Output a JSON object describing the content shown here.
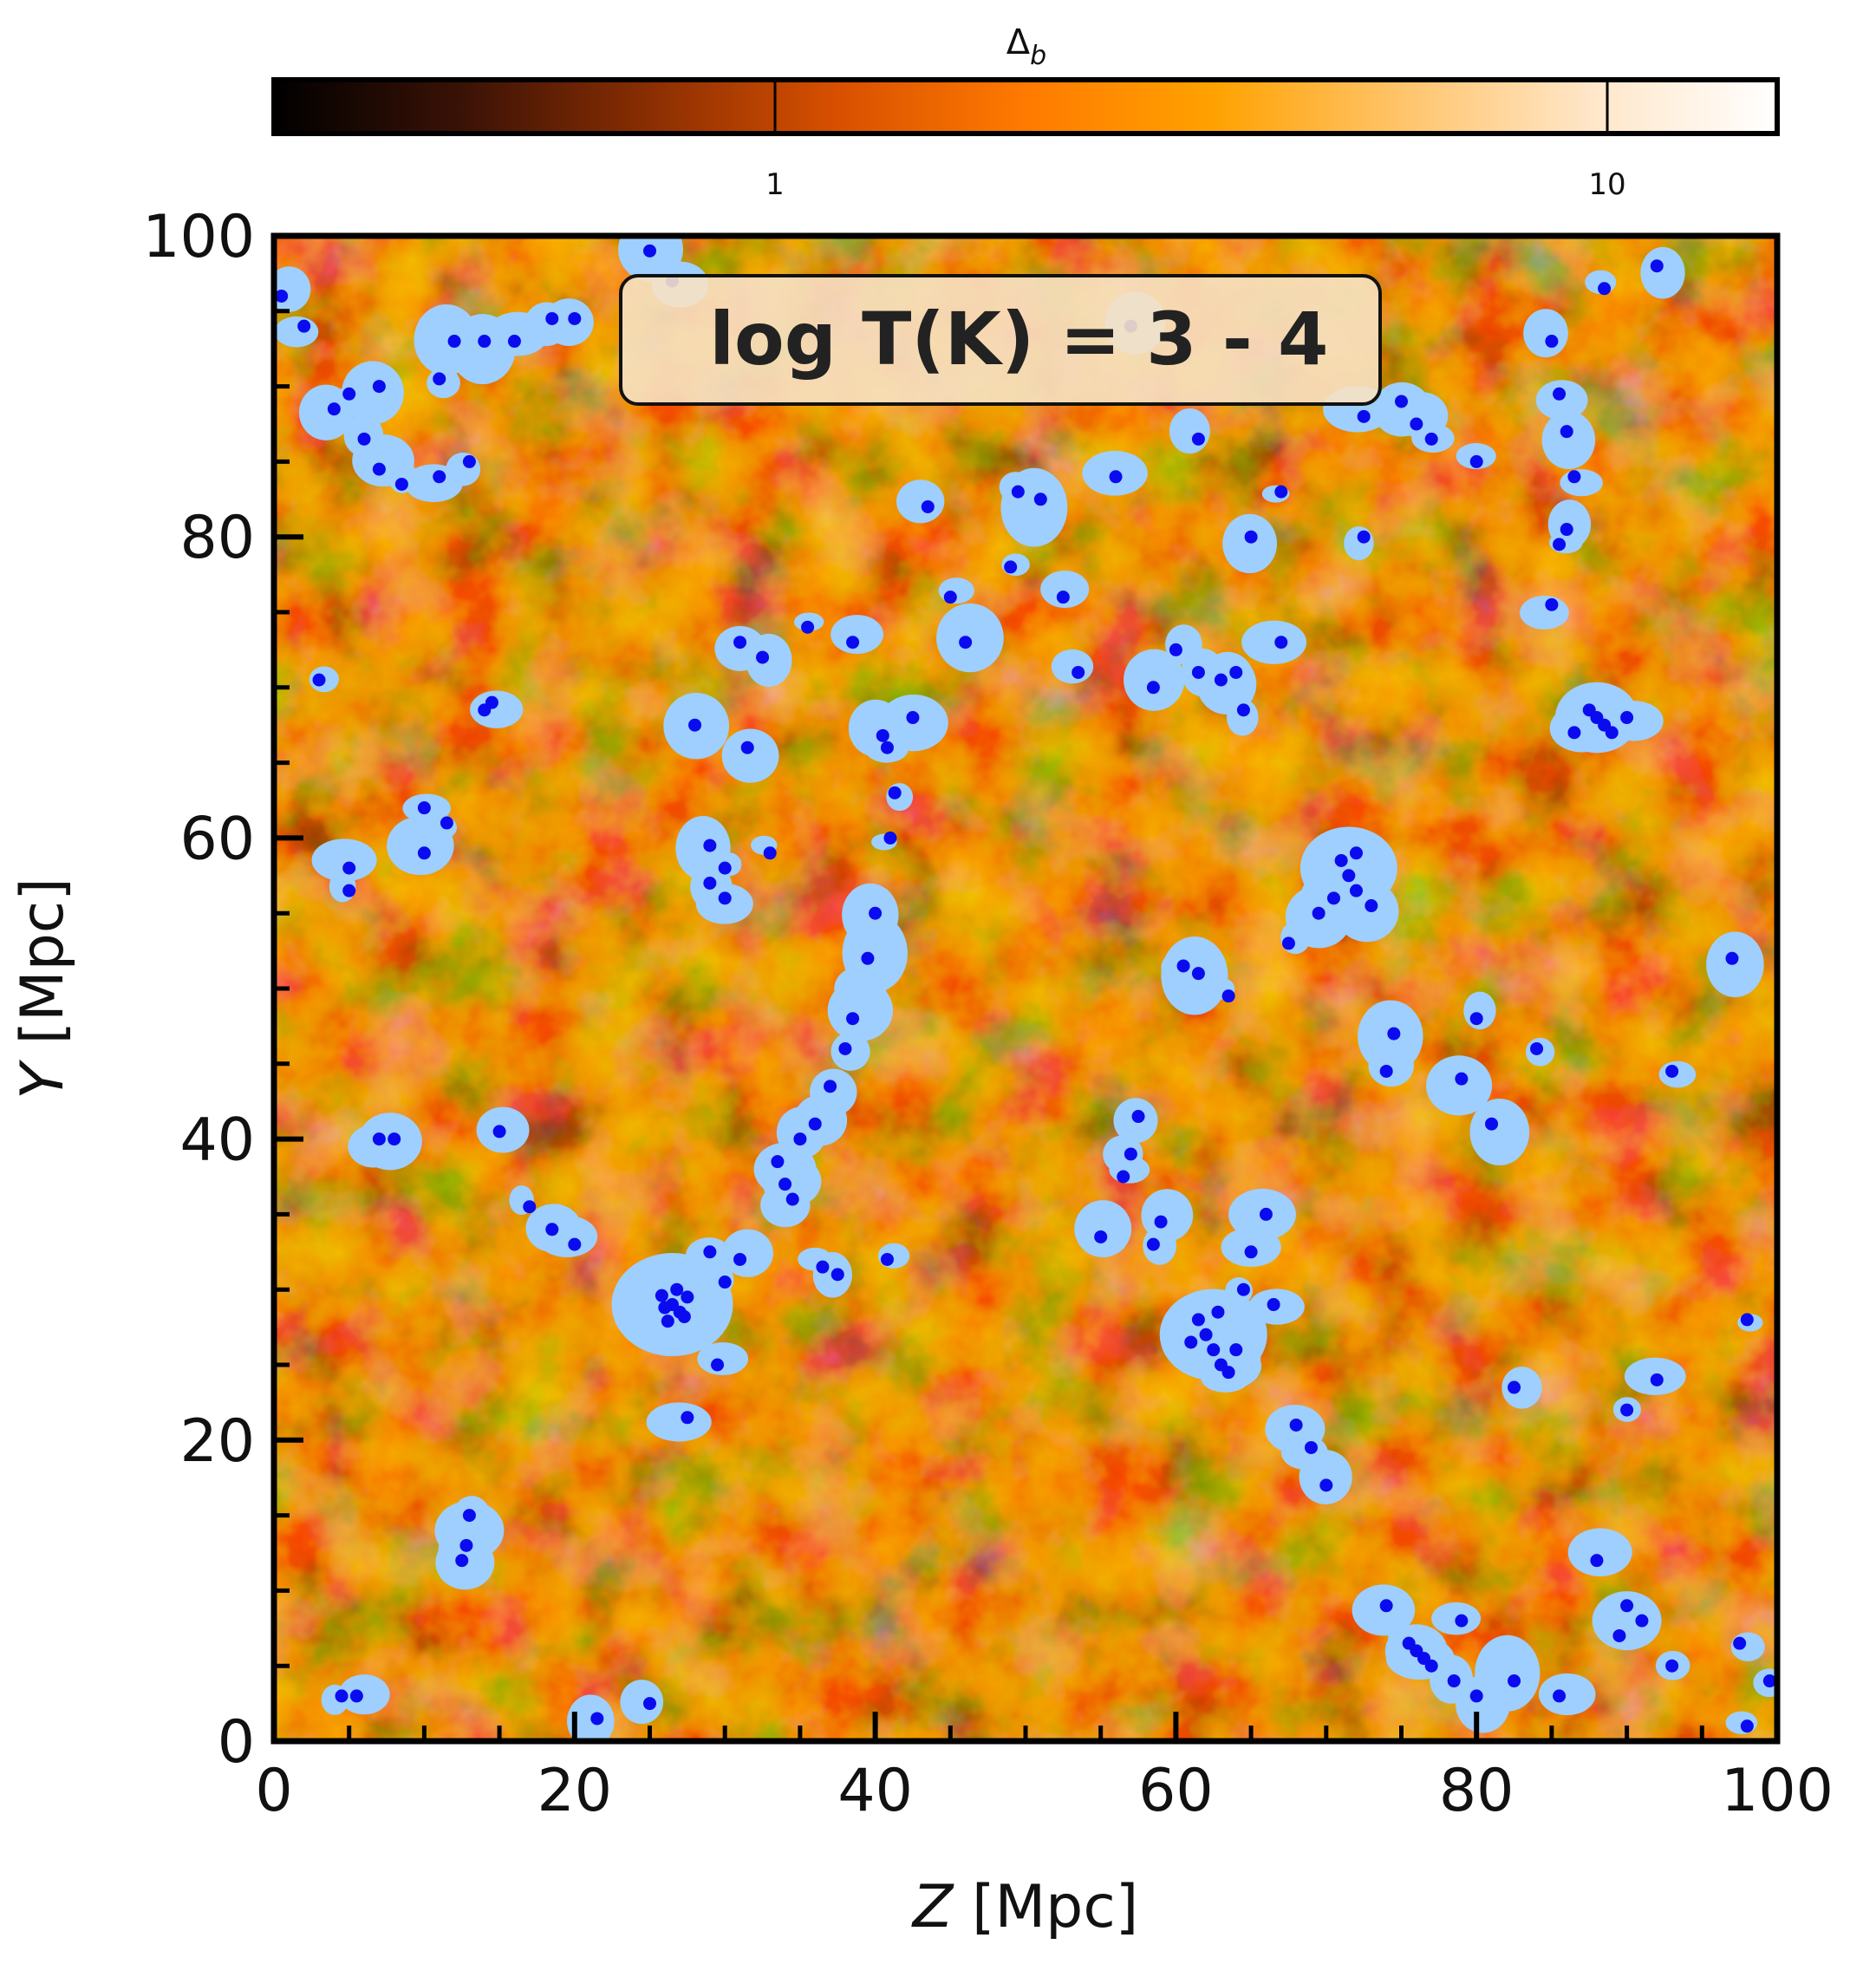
{
  "chart_data": {
    "type": "heatmap",
    "title": "",
    "annotation": "log T(K) = 3 - 4",
    "xlabel": {
      "italic": "Z",
      "rest": " [Mpc]"
    },
    "ylabel": {
      "italic": "Y",
      "rest": " [Mpc]"
    },
    "xlim": [
      0,
      100
    ],
    "ylim": [
      0,
      100
    ],
    "xticks": [
      0,
      20,
      40,
      60,
      80,
      100
    ],
    "yticks": [
      0,
      20,
      40,
      60,
      80,
      100
    ],
    "x_tick_labels": [
      "0",
      "20",
      "40",
      "60",
      "80",
      "100"
    ],
    "y_tick_labels": [
      "0",
      "20",
      "40",
      "60",
      "80",
      "100"
    ],
    "colorbar": {
      "label": "Δ",
      "label_sub": "b",
      "scale": "log",
      "range": [
        0.25,
        16
      ],
      "ticks": [
        1,
        10
      ],
      "tick_labels": [
        "1",
        "10"
      ],
      "colors": [
        "#000000",
        "#3a1206",
        "#8a2e02",
        "#d85000",
        "#ff7a00",
        "#ffa200",
        "#ffc46a",
        "#ffe6c8",
        "#ffffff"
      ]
    },
    "overlay_color": "#9ecfff",
    "point_color": "#0b0bf0",
    "grid": false,
    "halo_points": [
      [
        26.5,
        29
      ],
      [
        27,
        28.5
      ],
      [
        26,
        28.8
      ],
      [
        27.5,
        29.5
      ],
      [
        26.8,
        30
      ],
      [
        25.8,
        29.6
      ],
      [
        27.3,
        28.2
      ],
      [
        26.2,
        27.9
      ],
      [
        62,
        27
      ],
      [
        62.5,
        26
      ],
      [
        63,
        25
      ],
      [
        61.5,
        28
      ],
      [
        63.5,
        24.5
      ],
      [
        62.8,
        28.5
      ],
      [
        61,
        26.5
      ],
      [
        64,
        26
      ],
      [
        71.5,
        57.5
      ],
      [
        72,
        56.5
      ],
      [
        70.5,
        56
      ],
      [
        73,
        55.5
      ],
      [
        71,
        58.5
      ],
      [
        88,
        68
      ],
      [
        88.5,
        67.5
      ],
      [
        87.5,
        68.5
      ],
      [
        89,
        67
      ],
      [
        86.5,
        67
      ],
      [
        90,
        68
      ],
      [
        13,
        15
      ],
      [
        12.8,
        13
      ],
      [
        12.5,
        12
      ],
      [
        76,
        6
      ],
      [
        76.5,
        5.5
      ],
      [
        77,
        5
      ],
      [
        75.5,
        6.5
      ],
      [
        90,
        9
      ],
      [
        91,
        8
      ],
      [
        89.5,
        7
      ],
      [
        34,
        37
      ],
      [
        34.5,
        36
      ],
      [
        33.5,
        38.5
      ],
      [
        35,
        40
      ],
      [
        36,
        41
      ],
      [
        37,
        43.5
      ],
      [
        38,
        46
      ],
      [
        38.5,
        48
      ],
      [
        39.5,
        52
      ],
      [
        40,
        55
      ],
      [
        41,
        60
      ],
      [
        41.3,
        63
      ],
      [
        40.8,
        66
      ],
      [
        40.5,
        66.8
      ],
      [
        31,
        32
      ],
      [
        30,
        30.5
      ],
      [
        29,
        32.5
      ],
      [
        36.5,
        31.5
      ],
      [
        37.5,
        31
      ],
      [
        40.8,
        32
      ],
      [
        29.5,
        25
      ],
      [
        27.5,
        21.5
      ],
      [
        57,
        39
      ],
      [
        56.5,
        37.5
      ],
      [
        57.5,
        41.5
      ],
      [
        55,
        33.5
      ],
      [
        58.5,
        33
      ],
      [
        59,
        34.5
      ],
      [
        66,
        35
      ],
      [
        65,
        32.5
      ],
      [
        64.5,
        30
      ],
      [
        66.5,
        29
      ],
      [
        68,
        21
      ],
      [
        69,
        19.5
      ],
      [
        70,
        17
      ],
      [
        74,
        9
      ],
      [
        79,
        8
      ],
      [
        78.5,
        4
      ],
      [
        80,
        3
      ],
      [
        82.5,
        4
      ],
      [
        85.5,
        3
      ],
      [
        88,
        12
      ],
      [
        93,
        5
      ],
      [
        97.5,
        6.5
      ],
      [
        99.5,
        4
      ],
      [
        98,
        1
      ],
      [
        85,
        75.5
      ],
      [
        85.5,
        79.5
      ],
      [
        86,
        80.5
      ],
      [
        86.5,
        84
      ],
      [
        86,
        87
      ],
      [
        85.5,
        89.5
      ],
      [
        85,
        93
      ],
      [
        88.5,
        96.5
      ],
      [
        92,
        98
      ],
      [
        80,
        85
      ],
      [
        77,
        86.5
      ],
      [
        76,
        87.5
      ],
      [
        75,
        89
      ],
      [
        67,
        83
      ],
      [
        65,
        80
      ],
      [
        61.5,
        86.5
      ],
      [
        57,
        94
      ],
      [
        53.5,
        71
      ],
      [
        58.5,
        70
      ],
      [
        60,
        72.5
      ],
      [
        61.5,
        71
      ],
      [
        63,
        70.5
      ],
      [
        64.5,
        68.5
      ],
      [
        72,
        59
      ],
      [
        69.5,
        55
      ],
      [
        67.5,
        53
      ],
      [
        63.5,
        49.5
      ],
      [
        61.5,
        51
      ],
      [
        60.5,
        51.5
      ],
      [
        74.5,
        47
      ],
      [
        74,
        44.5
      ],
      [
        79,
        44
      ],
      [
        81,
        41
      ],
      [
        80,
        48
      ],
      [
        84,
        46
      ],
      [
        93,
        44.5
      ],
      [
        97,
        52
      ],
      [
        98,
        28
      ],
      [
        90,
        22
      ],
      [
        92,
        24
      ],
      [
        82.5,
        23.5
      ],
      [
        7,
        84.5
      ],
      [
        8.5,
        83.5
      ],
      [
        11,
        84
      ],
      [
        13,
        85
      ],
      [
        11,
        90.5
      ],
      [
        12,
        93
      ],
      [
        14,
        93
      ],
      [
        16,
        93
      ],
      [
        18.5,
        94.5
      ],
      [
        20,
        94.5
      ],
      [
        4,
        88.5
      ],
      [
        5,
        89.5
      ],
      [
        7,
        90
      ],
      [
        6,
        86.5
      ],
      [
        2,
        94
      ],
      [
        0.5,
        96
      ],
      [
        10,
        62
      ],
      [
        11.5,
        61
      ],
      [
        10,
        59
      ],
      [
        5,
        58
      ],
      [
        5,
        56.5
      ],
      [
        3,
        70.5
      ],
      [
        14,
        68.5
      ],
      [
        14.5,
        69
      ],
      [
        7,
        40
      ],
      [
        8,
        40
      ],
      [
        15,
        40.5
      ],
      [
        17,
        35.5
      ],
      [
        20,
        33
      ],
      [
        18.5,
        34
      ],
      [
        4.5,
        3
      ],
      [
        5.5,
        3
      ],
      [
        21.5,
        1.5
      ],
      [
        25,
        2.5
      ],
      [
        25,
        99
      ],
      [
        26.5,
        97
      ],
      [
        30,
        56
      ],
      [
        29,
        57
      ],
      [
        30,
        58
      ],
      [
        29,
        59.5
      ],
      [
        31.5,
        66
      ],
      [
        33,
        59
      ],
      [
        28,
        67.5
      ],
      [
        31,
        73
      ],
      [
        32.5,
        72
      ],
      [
        35.5,
        74
      ],
      [
        38.5,
        73
      ],
      [
        42.5,
        68
      ],
      [
        46,
        73
      ],
      [
        43.5,
        82
      ],
      [
        45,
        76
      ],
      [
        49,
        78
      ],
      [
        51,
        82.5
      ],
      [
        56,
        84
      ],
      [
        49.5,
        83
      ],
      [
        52.5,
        76
      ],
      [
        64,
        71
      ],
      [
        67,
        73
      ],
      [
        72.5,
        88
      ],
      [
        72.5,
        80
      ]
    ]
  }
}
